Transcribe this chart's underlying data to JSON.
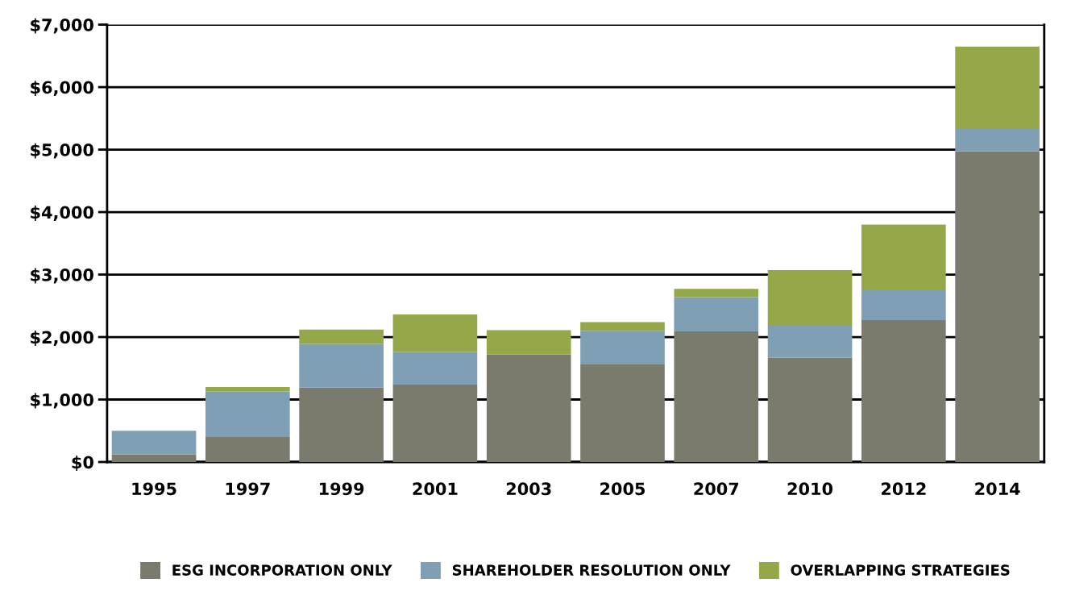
{
  "chart_data": {
    "type": "bar",
    "stacked": true,
    "categories": [
      "1995",
      "1997",
      "1999",
      "2001",
      "2003",
      "2005",
      "2007",
      "2010",
      "2012",
      "2014"
    ],
    "series": [
      {
        "name": "ESG INCORPORATION ONLY",
        "color": "#7a7b6d",
        "values": [
          120,
          400,
          1190,
          1240,
          1720,
          1560,
          2090,
          1670,
          2270,
          4970
        ]
      },
      {
        "name": "SHAREHOLDER RESOLUTION ONLY",
        "color": "#7f9fb5",
        "values": [
          380,
          730,
          700,
          520,
          0,
          540,
          550,
          510,
          490,
          360
        ]
      },
      {
        "name": "OVERLAPPING STRATEGIES",
        "color": "#94a84a",
        "values": [
          0,
          70,
          230,
          600,
          390,
          140,
          130,
          890,
          1040,
          1320
        ]
      }
    ],
    "ylim": [
      0,
      7000
    ],
    "yticks": [
      {
        "value": 0,
        "label": "$0"
      },
      {
        "value": 1000,
        "label": "$1,000"
      },
      {
        "value": 2000,
        "label": "$2,000"
      },
      {
        "value": 3000,
        "label": "$3,000"
      },
      {
        "value": 4000,
        "label": "$4,000"
      },
      {
        "value": 5000,
        "label": "$5,000"
      },
      {
        "value": 6000,
        "label": "$6,000"
      },
      {
        "value": 7000,
        "label": "$7,000"
      }
    ],
    "grid": "y",
    "legend": "bottom"
  }
}
